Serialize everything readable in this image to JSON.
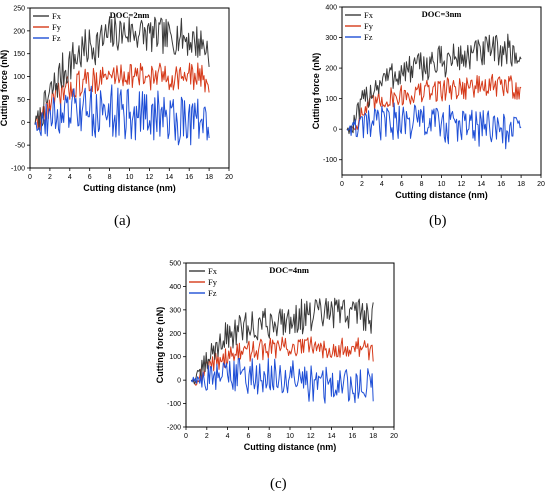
{
  "colors": {
    "Fx": "#3a3a3a",
    "Fy": "#d63a1a",
    "Fz": "#1f4fd6"
  },
  "chart_data": [
    {
      "type": "line",
      "title": "DOC=2nm",
      "panel_label": "(a)",
      "xlabel": "Cutting distance (nm)",
      "ylabel": "Cutting force (nN)",
      "xlim": [
        0,
        20
      ],
      "ylim": [
        -100,
        250
      ],
      "xticks": [
        "0",
        "2",
        "4",
        "6",
        "8",
        "10",
        "12",
        "14",
        "16",
        "18",
        "20"
      ],
      "yticks": [
        "-100",
        "-50",
        "0",
        "50",
        "100",
        "150",
        "200",
        "250"
      ],
      "legend": [
        "Fx",
        "Fy",
        "Fz"
      ],
      "legend_position": "top-left",
      "x_extent": [
        0.5,
        18
      ],
      "series": [
        {
          "name": "Fx",
          "x": [
            0.5,
            1,
            2,
            3,
            4,
            5,
            6,
            7,
            8,
            9,
            10,
            11,
            12,
            13,
            14,
            15,
            16,
            17,
            18
          ],
          "values": [
            0,
            10,
            60,
            100,
            130,
            150,
            165,
            175,
            190,
            195,
            200,
            195,
            190,
            190,
            185,
            190,
            180,
            175,
            160
          ],
          "spread": [
            10,
            30,
            40,
            45,
            45,
            45,
            45,
            45,
            45,
            40,
            40,
            40,
            40,
            40,
            40,
            40,
            40,
            40,
            40
          ]
        },
        {
          "name": "Fy",
          "x": [
            0.5,
            1,
            2,
            3,
            4,
            5,
            6,
            7,
            8,
            9,
            10,
            11,
            12,
            13,
            14,
            15,
            16,
            17,
            18
          ],
          "values": [
            0,
            5,
            40,
            60,
            75,
            85,
            90,
            95,
            100,
            105,
            105,
            100,
            100,
            100,
            100,
            100,
            100,
            100,
            90
          ],
          "spread": [
            10,
            25,
            30,
            30,
            30,
            30,
            30,
            30,
            30,
            30,
            30,
            30,
            30,
            30,
            30,
            30,
            30,
            30,
            30
          ]
        },
        {
          "name": "Fz",
          "x": [
            0.5,
            1,
            2,
            3,
            4,
            5,
            6,
            7,
            8,
            9,
            10,
            11,
            12,
            13,
            14,
            15,
            16,
            17,
            18
          ],
          "values": [
            0,
            -5,
            10,
            15,
            20,
            25,
            25,
            25,
            25,
            20,
            20,
            15,
            15,
            10,
            10,
            10,
            10,
            5,
            0
          ],
          "spread": [
            10,
            30,
            40,
            50,
            55,
            55,
            55,
            60,
            60,
            60,
            60,
            60,
            60,
            60,
            60,
            60,
            60,
            55,
            50
          ]
        }
      ]
    },
    {
      "type": "line",
      "title": "DOC=3nm",
      "panel_label": "(b)",
      "xlabel": "Cutting distance (nm)",
      "ylabel": "Cutting force (nN)",
      "xlim": [
        0,
        20
      ],
      "ylim": [
        -150,
        400
      ],
      "xticks": [
        "0",
        "2",
        "4",
        "6",
        "8",
        "10",
        "12",
        "14",
        "16",
        "18",
        "20"
      ],
      "yticks": [
        "-100",
        "0",
        "100",
        "200",
        "300",
        "400"
      ],
      "legend": [
        "Fx",
        "Fy",
        "Fz"
      ],
      "legend_position": "top-left",
      "x_extent": [
        0.5,
        18
      ],
      "series": [
        {
          "name": "Fx",
          "x": [
            0.5,
            1,
            2,
            3,
            4,
            5,
            6,
            7,
            8,
            9,
            10,
            11,
            12,
            13,
            14,
            15,
            16,
            17,
            18
          ],
          "values": [
            0,
            0,
            80,
            130,
            160,
            175,
            185,
            195,
            205,
            215,
            220,
            230,
            235,
            240,
            250,
            255,
            260,
            255,
            230
          ],
          "spread": [
            5,
            30,
            45,
            50,
            50,
            50,
            50,
            50,
            50,
            55,
            55,
            55,
            55,
            55,
            55,
            55,
            55,
            55,
            55
          ]
        },
        {
          "name": "Fy",
          "x": [
            0.5,
            1,
            2,
            3,
            4,
            5,
            6,
            7,
            8,
            9,
            10,
            11,
            12,
            13,
            14,
            15,
            16,
            17,
            18
          ],
          "values": [
            0,
            0,
            50,
            80,
            95,
            105,
            110,
            115,
            120,
            125,
            130,
            135,
            135,
            140,
            140,
            140,
            140,
            140,
            130
          ],
          "spread": [
            5,
            25,
            35,
            35,
            35,
            35,
            35,
            40,
            40,
            40,
            40,
            40,
            40,
            40,
            40,
            40,
            40,
            40,
            40
          ]
        },
        {
          "name": "Fz",
          "x": [
            0.5,
            1,
            2,
            3,
            4,
            5,
            6,
            7,
            8,
            9,
            10,
            11,
            12,
            13,
            14,
            15,
            16,
            17,
            18
          ],
          "values": [
            0,
            0,
            5,
            15,
            20,
            25,
            25,
            25,
            25,
            20,
            15,
            15,
            10,
            5,
            5,
            0,
            0,
            -5,
            -10
          ],
          "spread": [
            5,
            25,
            45,
            55,
            60,
            60,
            65,
            65,
            65,
            65,
            65,
            65,
            65,
            65,
            65,
            65,
            65,
            65,
            60
          ]
        }
      ]
    },
    {
      "type": "line",
      "title": "DOC=4nm",
      "panel_label": "(c)",
      "xlabel": "Cutting distance (nm)",
      "ylabel": "Cutting force (nN)",
      "xlim": [
        0,
        20
      ],
      "ylim": [
        -200,
        500
      ],
      "xticks": [
        "0",
        "2",
        "4",
        "6",
        "8",
        "10",
        "12",
        "14",
        "16",
        "18",
        "20"
      ],
      "yticks": [
        "-200",
        "-100",
        "0",
        "100",
        "200",
        "300",
        "400",
        "500"
      ],
      "legend": [
        "Fx",
        "Fy",
        "Fz"
      ],
      "legend_position": "top-left",
      "x_extent": [
        0.5,
        18
      ],
      "series": [
        {
          "name": "Fx",
          "x": [
            0.5,
            1,
            2,
            3,
            4,
            5,
            6,
            7,
            8,
            9,
            10,
            11,
            12,
            13,
            14,
            15,
            16,
            17,
            18
          ],
          "values": [
            0,
            0,
            80,
            150,
            190,
            210,
            225,
            235,
            245,
            255,
            265,
            270,
            275,
            280,
            285,
            290,
            290,
            290,
            260
          ],
          "spread": [
            5,
            30,
            55,
            60,
            65,
            65,
            70,
            70,
            70,
            70,
            75,
            75,
            75,
            75,
            75,
            75,
            75,
            75,
            75
          ]
        },
        {
          "name": "Fy",
          "x": [
            0.5,
            1,
            2,
            3,
            4,
            5,
            6,
            7,
            8,
            9,
            10,
            11,
            12,
            13,
            14,
            15,
            16,
            17,
            18
          ],
          "values": [
            0,
            0,
            50,
            85,
            105,
            115,
            125,
            130,
            135,
            140,
            140,
            140,
            140,
            140,
            140,
            140,
            140,
            135,
            120
          ],
          "spread": [
            5,
            25,
            40,
            45,
            45,
            45,
            45,
            45,
            45,
            45,
            45,
            45,
            45,
            45,
            45,
            45,
            45,
            45,
            45
          ]
        },
        {
          "name": "Fz",
          "x": [
            0.5,
            1,
            2,
            3,
            4,
            5,
            6,
            7,
            8,
            9,
            10,
            11,
            12,
            13,
            14,
            15,
            16,
            17,
            18
          ],
          "values": [
            0,
            0,
            5,
            15,
            20,
            25,
            20,
            15,
            10,
            5,
            0,
            -5,
            -10,
            -15,
            -20,
            -20,
            -25,
            -20,
            -30
          ],
          "spread": [
            5,
            30,
            55,
            70,
            75,
            80,
            80,
            80,
            85,
            85,
            85,
            85,
            85,
            85,
            85,
            85,
            85,
            80,
            80
          ]
        }
      ]
    }
  ]
}
